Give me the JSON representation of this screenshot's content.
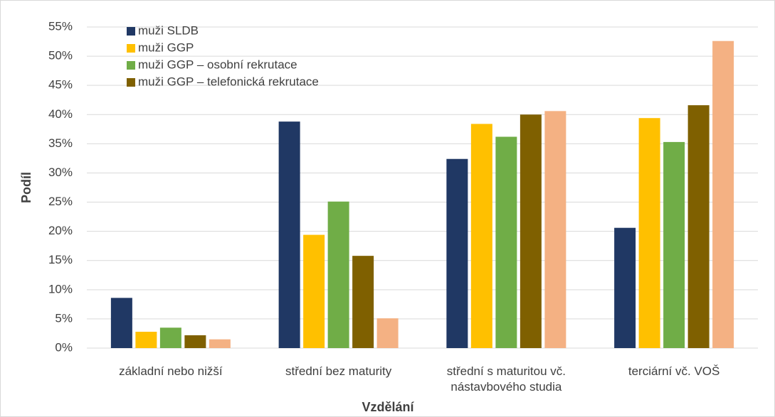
{
  "chart_data": {
    "type": "bar",
    "x_label": "Vzdělání",
    "y_label": "Podíl",
    "categories": [
      "základní nebo nižší",
      "střední bez maturity",
      "střední s maturitou vč. nástavbového studia",
      "terciární vč. VOŠ"
    ],
    "series": [
      {
        "name": "muži SLDB",
        "color": "#203864",
        "values": [
          8.6,
          38.8,
          32.4,
          20.6
        ]
      },
      {
        "name": "muži GGP",
        "color": "#ffc000",
        "values": [
          2.8,
          19.4,
          38.4,
          39.4
        ]
      },
      {
        "name": "muži GGP – osobní rekrutace",
        "color": "#70ad47",
        "values": [
          3.5,
          25.1,
          36.2,
          35.3
        ]
      },
      {
        "name": "muži GGP – telefonická rekrutace",
        "color": "#7f6000",
        "values": [
          2.2,
          15.8,
          40.0,
          41.6
        ]
      },
      {
        "color": "#f4b183",
        "values": [
          1.5,
          5.1,
          40.6,
          52.6
        ]
      }
    ],
    "ylim": [
      0,
      55
    ],
    "yticks": [
      {
        "value": 0,
        "label": "0%"
      },
      {
        "value": 5,
        "label": "5%"
      },
      {
        "value": 10,
        "label": "10%"
      },
      {
        "value": 15,
        "label": "15%"
      },
      {
        "value": 20,
        "label": "20%"
      },
      {
        "value": 25,
        "label": "25%"
      },
      {
        "value": 30,
        "label": "30%"
      },
      {
        "value": 35,
        "label": "35%"
      },
      {
        "value": 40,
        "label": "40%"
      },
      {
        "value": 45,
        "label": "45%"
      },
      {
        "value": 50,
        "label": "50%"
      },
      {
        "value": 55,
        "label": "55%"
      }
    ],
    "grid": true,
    "legend": "upper left"
  }
}
